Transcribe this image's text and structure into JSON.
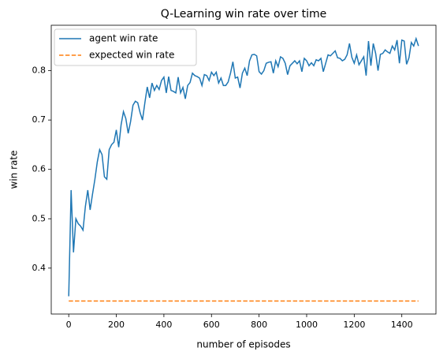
{
  "chart_data": {
    "type": "line",
    "title": "Q-Learning win rate over time",
    "x_label": "number of episodes",
    "y_label": "win rate",
    "x": [
      0,
      10,
      20,
      30,
      40,
      50,
      60,
      70,
      80,
      90,
      100,
      110,
      120,
      130,
      140,
      150,
      160,
      170,
      180,
      190,
      200,
      210,
      220,
      230,
      240,
      250,
      260,
      270,
      280,
      290,
      300,
      310,
      320,
      330,
      340,
      350,
      360,
      370,
      380,
      390,
      400,
      410,
      420,
      430,
      440,
      450,
      460,
      470,
      480,
      490,
      500,
      510,
      520,
      530,
      540,
      550,
      560,
      570,
      580,
      590,
      600,
      610,
      620,
      630,
      640,
      650,
      660,
      670,
      680,
      690,
      700,
      710,
      720,
      730,
      740,
      750,
      760,
      770,
      780,
      790,
      800,
      810,
      820,
      830,
      840,
      850,
      860,
      870,
      880,
      890,
      900,
      910,
      920,
      930,
      940,
      950,
      960,
      970,
      980,
      990,
      1000,
      1010,
      1020,
      1030,
      1040,
      1050,
      1060,
      1070,
      1080,
      1090,
      1100,
      1110,
      1120,
      1130,
      1140,
      1150,
      1160,
      1170,
      1180,
      1190,
      1200,
      1210,
      1220,
      1230,
      1240,
      1250,
      1260,
      1270,
      1280,
      1290,
      1300,
      1310,
      1320,
      1330,
      1340,
      1350,
      1360,
      1370,
      1380,
      1390,
      1400,
      1410,
      1420,
      1430,
      1440,
      1450,
      1460,
      1470
    ],
    "series": [
      {
        "name": "agent win rate",
        "color": "#1f77b4",
        "dash": "solid",
        "values": [
          0.343,
          0.558,
          0.432,
          0.5,
          0.49,
          0.485,
          0.477,
          0.525,
          0.558,
          0.518,
          0.55,
          0.58,
          0.615,
          0.64,
          0.63,
          0.585,
          0.58,
          0.64,
          0.65,
          0.655,
          0.68,
          0.645,
          0.69,
          0.717,
          0.703,
          0.673,
          0.697,
          0.73,
          0.738,
          0.735,
          0.715,
          0.7,
          0.735,
          0.767,
          0.745,
          0.775,
          0.76,
          0.77,
          0.762,
          0.78,
          0.787,
          0.755,
          0.788,
          0.76,
          0.758,
          0.755,
          0.787,
          0.755,
          0.766,
          0.743,
          0.77,
          0.776,
          0.795,
          0.79,
          0.788,
          0.785,
          0.77,
          0.792,
          0.79,
          0.78,
          0.797,
          0.79,
          0.797,
          0.775,
          0.785,
          0.77,
          0.77,
          0.777,
          0.795,
          0.818,
          0.785,
          0.787,
          0.765,
          0.795,
          0.805,
          0.79,
          0.82,
          0.832,
          0.833,
          0.83,
          0.798,
          0.793,
          0.8,
          0.815,
          0.817,
          0.818,
          0.795,
          0.82,
          0.808,
          0.828,
          0.825,
          0.815,
          0.792,
          0.81,
          0.815,
          0.82,
          0.814,
          0.82,
          0.798,
          0.825,
          0.82,
          0.81,
          0.816,
          0.81,
          0.822,
          0.82,
          0.825,
          0.798,
          0.815,
          0.832,
          0.83,
          0.835,
          0.84,
          0.826,
          0.825,
          0.82,
          0.823,
          0.832,
          0.855,
          0.827,
          0.815,
          0.832,
          0.812,
          0.82,
          0.828,
          0.79,
          0.86,
          0.81,
          0.855,
          0.835,
          0.8,
          0.833,
          0.835,
          0.842,
          0.838,
          0.835,
          0.85,
          0.842,
          0.862,
          0.815,
          0.862,
          0.86,
          0.813,
          0.826,
          0.857,
          0.85,
          0.865,
          0.85
        ]
      },
      {
        "name": "expected win rate",
        "color": "#ff7f0e",
        "dash": "dashed",
        "x": [
          0,
          1470
        ],
        "values": [
          0.3333,
          0.3333
        ]
      }
    ],
    "xlim": [
      -73.5,
      1543.5
    ],
    "xticks": [
      0,
      200,
      400,
      600,
      800,
      1000,
      1200,
      1400
    ],
    "ylim": [
      0.307,
      0.892
    ],
    "yticks": [
      0.4,
      0.5,
      0.6,
      0.7,
      0.8
    ],
    "grid": false,
    "legend": "upper left"
  }
}
